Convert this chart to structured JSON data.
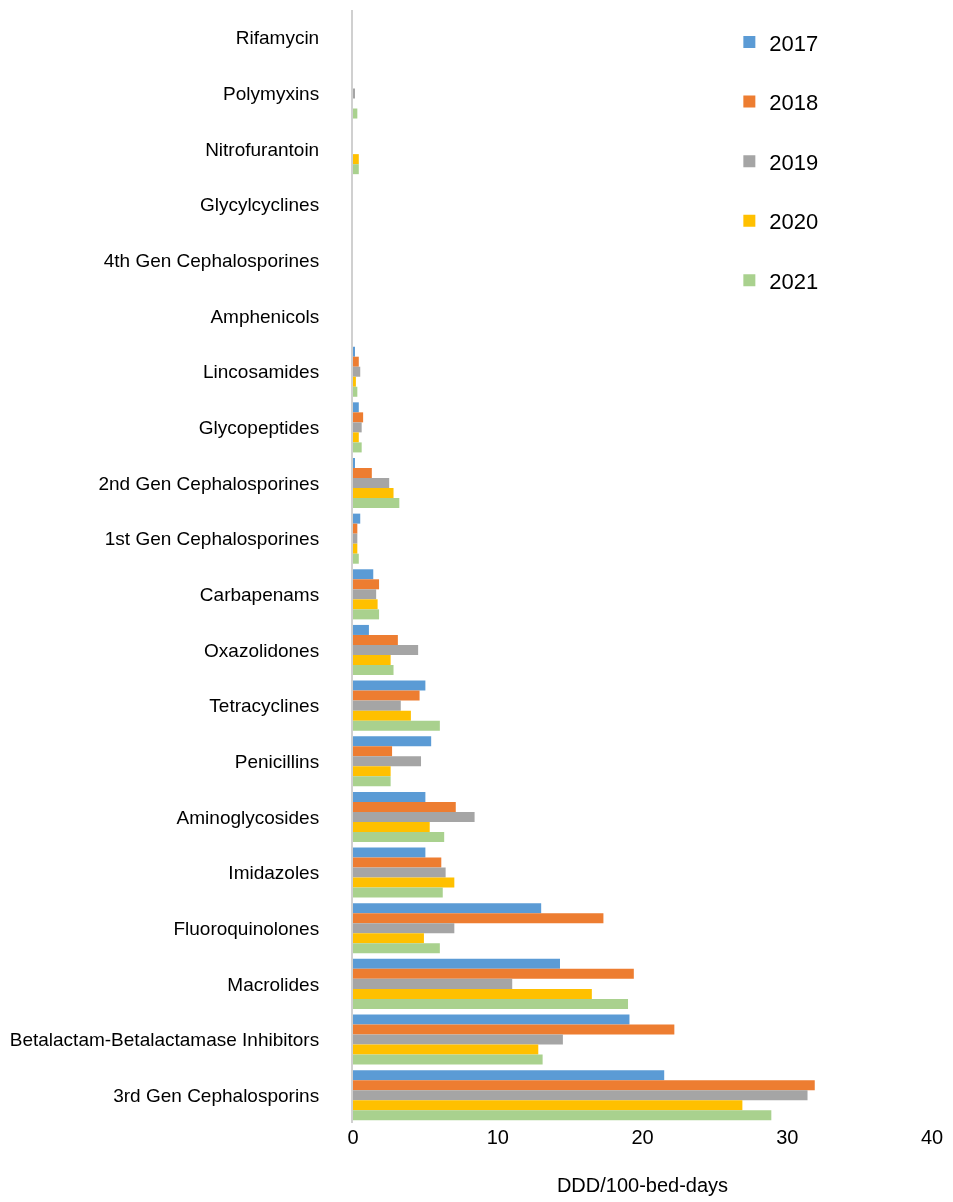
{
  "chart_data": {
    "type": "bar",
    "orientation": "horizontal",
    "xlabel": "DDD/100-bed-days",
    "categories": [
      "Rifamycin",
      "Polymyxins",
      "Nitrofurantoin",
      "Glycylcyclines",
      "4th Gen Cephalosporines",
      "Amphenicols",
      "Lincosamides",
      "Glycopeptides",
      "2nd Gen Cephalosporines",
      "1st Gen Cephalosporines",
      "Carbapenams",
      "Oxazolidones",
      "Tetracyclines",
      "Penicillins",
      "Aminoglycosides",
      "Imidazoles",
      "Fluoroquinolones",
      "Macrolides",
      "Betalactam-Betalactamase Inhibitors",
      "3rd Gen Cephalosporins"
    ],
    "series": [
      {
        "name": "2017",
        "color": "#5b9bd5",
        "values": [
          0,
          0,
          0,
          0,
          0,
          0,
          0.1,
          0.4,
          0.1,
          0.5,
          1.4,
          1.1,
          5.0,
          5.4,
          5.0,
          5.0,
          13.0,
          14.3,
          19.1,
          21.5
        ]
      },
      {
        "name": "2018",
        "color": "#ed7d31",
        "values": [
          0,
          0,
          0,
          0,
          0,
          0,
          0.4,
          0.7,
          1.3,
          0.3,
          1.8,
          3.1,
          4.6,
          2.7,
          7.1,
          6.1,
          17.3,
          19.4,
          22.2,
          31.9
        ]
      },
      {
        "name": "2019",
        "color": "#a5a5a5",
        "values": [
          0,
          0.1,
          0,
          0,
          0,
          0,
          0.5,
          0.6,
          2.5,
          0.3,
          1.6,
          4.5,
          3.3,
          4.7,
          8.4,
          6.4,
          7.0,
          11.0,
          14.5,
          31.4
        ]
      },
      {
        "name": "2020",
        "color": "#ffc000",
        "values": [
          0,
          0,
          0.4,
          0,
          0,
          0,
          0.2,
          0.4,
          2.8,
          0.3,
          1.7,
          2.6,
          4.0,
          2.6,
          5.3,
          7.0,
          4.9,
          16.5,
          12.8,
          26.9
        ]
      },
      {
        "name": "2021",
        "color": "#a9d18e",
        "values": [
          0,
          0.3,
          0.4,
          0,
          0,
          0,
          0.3,
          0.6,
          3.2,
          0.4,
          1.8,
          2.8,
          6.0,
          2.6,
          6.3,
          6.2,
          6.0,
          19.0,
          13.1,
          28.9
        ]
      }
    ],
    "xlim": [
      0,
      40
    ],
    "xticks": [
      0,
      10,
      20,
      30,
      40
    ],
    "grid": false,
    "legend": "top right"
  }
}
